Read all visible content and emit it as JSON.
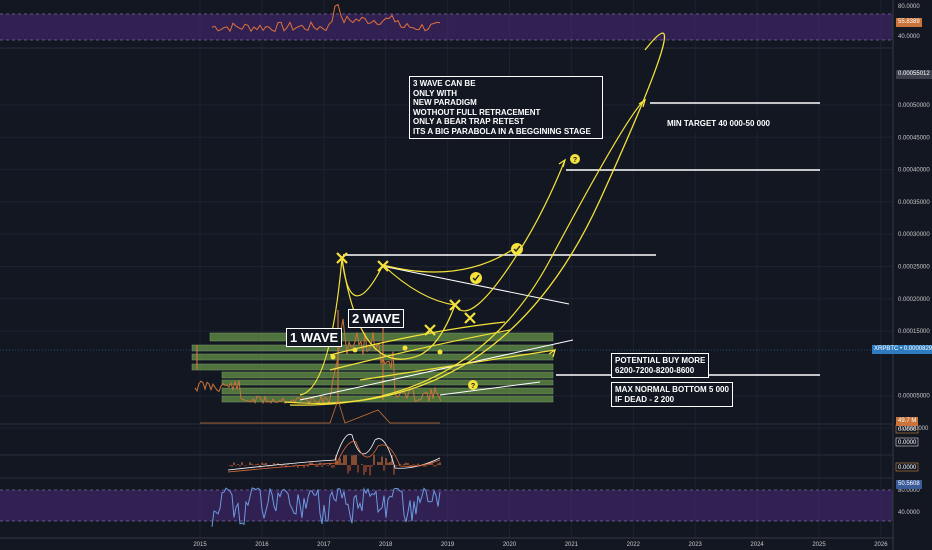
{
  "chart_data": {
    "type": "line",
    "x_axis": {
      "years": [
        "2015",
        "2016",
        "2017",
        "2018",
        "2019",
        "2020",
        "2021",
        "2022",
        "2023",
        "2024",
        "2025",
        "2026"
      ]
    },
    "main_axis": {
      "ticks": [
        "0.00050000",
        "0.00045000",
        "0.00040000",
        "0.00035000",
        "0.00030000",
        "0.00025000",
        "0.00020000",
        "0.00015000",
        "0.00005000",
        "-0.0000000"
      ]
    },
    "price_tags": {
      "top": "0.00055012",
      "current": "XRPBTC • 0.00008294"
    },
    "indicator_top": {
      "ticks": [
        "80.0000",
        "40.0000"
      ],
      "tag": "55.8389"
    },
    "indicator_macd": {
      "ticks": [
        "0.0000",
        "0.0000",
        "0.0000"
      ]
    },
    "indicator_vol_tag": "49.7 M",
    "indicator_rsi": {
      "ticks": [
        "80.0000",
        "40.0000"
      ],
      "tag": "50.5608"
    },
    "annotations": {
      "wave1": "1 WAVE",
      "wave2": "2 WAVE",
      "wave3_note": "3 WAVE CAN BE\nONLY WITH\nNEW PARADIGM\nWOTHOUT FULL RETRACEMENT\nONLY A BEAR TRAP RETEST\nITS A BIG PARABOLA IN A BEGGINING STAGE",
      "min_target": "MIN TARGET 40 000-50 000",
      "buy_more": "POTENTIAL BUY MORE\n6200-7200-8200-8600",
      "bottom": "MAX NORMAL BOTTOM 5 000\nIF DEAD - 2 200",
      "question": "?"
    },
    "colors": {
      "background": "#131722",
      "overlay_purple": "#4a2a7a",
      "price": "#c9743a",
      "drawing_yellow": "#f5e23a",
      "drawing_white": "#ffffff",
      "zone_green": "#6a9a4a",
      "current_tag": "#2e7cbf"
    }
  }
}
